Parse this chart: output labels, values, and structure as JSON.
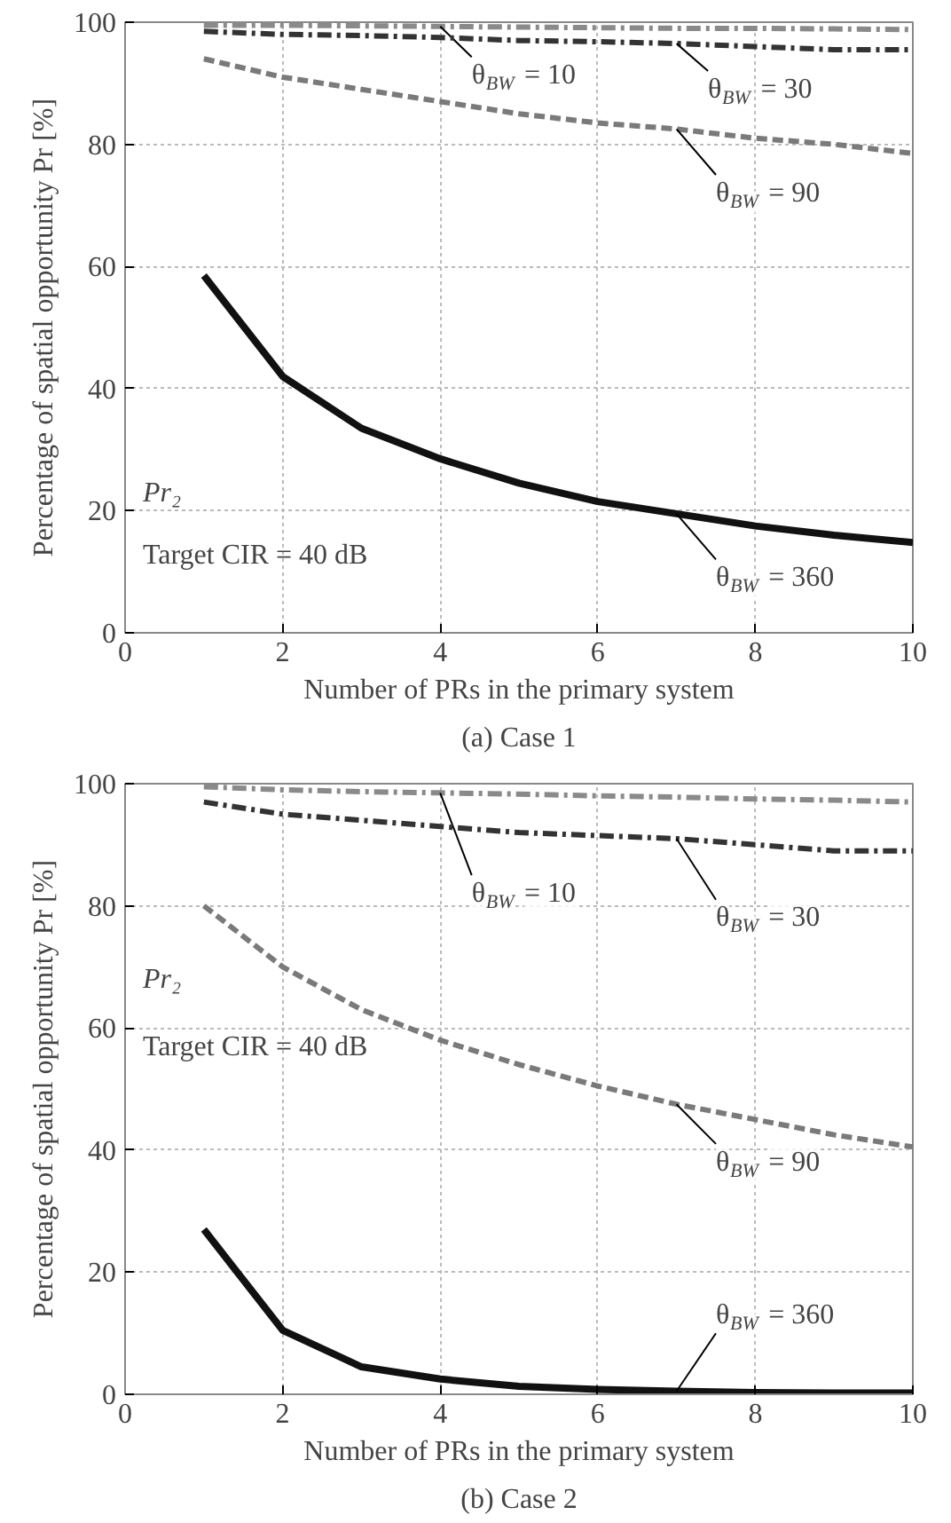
{
  "chart_data": [
    {
      "type": "line",
      "title": "(a) Case 1",
      "xlabel": "Number of PRs in the primary system",
      "ylabel": "Percentage of spatial opportunity Pr [%]",
      "x": [
        1,
        2,
        3,
        4,
        5,
        6,
        7,
        8,
        9,
        10
      ],
      "xlim": [
        0,
        10
      ],
      "ylim": [
        0,
        100
      ],
      "xticks": [
        0,
        2,
        4,
        6,
        8,
        10
      ],
      "yticks": [
        0,
        20,
        40,
        60,
        80,
        100
      ],
      "grid": true,
      "marker": "none",
      "series": [
        {
          "name": "θ$_{BW}$ = 10",
          "color": "#8a8a8a",
          "line_style": "dashdot",
          "values": [
            99.5,
            99.5,
            99.4,
            99.3,
            99.2,
            99.1,
            99.0,
            99.0,
            98.9,
            98.8
          ]
        },
        {
          "name": "θ$_{BW}$ = 30",
          "color": "#333333",
          "line_style": "dashdot",
          "values": [
            98.5,
            98.0,
            97.8,
            97.5,
            97.0,
            96.8,
            96.5,
            96.0,
            95.5,
            95.5
          ]
        },
        {
          "name": "θ$_{BW}$ = 90",
          "color": "#7a7a7a",
          "line_style": "dashed",
          "values": [
            94,
            91,
            89,
            87,
            85,
            83.5,
            82.5,
            81,
            80,
            78.5
          ]
        },
        {
          "name": "θ$_{BW}$ = 360",
          "color": "#111111",
          "line_style": "solid",
          "values": [
            58.5,
            42,
            33.5,
            28.5,
            24.5,
            21.5,
            19.5,
            17.5,
            16,
            14.8
          ]
        }
      ],
      "annotations": [
        "Pr₂",
        "Target CIR = 40 dB"
      ]
    },
    {
      "type": "line",
      "title": "(b) Case 2",
      "xlabel": "Number of PRs in the primary system",
      "ylabel": "Percentage of spatial opportunity Pr [%]",
      "x": [
        1,
        2,
        3,
        4,
        5,
        6,
        7,
        8,
        9,
        10
      ],
      "xlim": [
        0,
        10
      ],
      "ylim": [
        0,
        100
      ],
      "xticks": [
        0,
        2,
        4,
        6,
        8,
        10
      ],
      "yticks": [
        0,
        20,
        40,
        60,
        80,
        100
      ],
      "grid": true,
      "marker": "none",
      "series": [
        {
          "name": "θ$_{BW}$ = 10",
          "color": "#8a8a8a",
          "line_style": "dashdot",
          "values": [
            99.5,
            99.0,
            98.7,
            98.5,
            98.3,
            98.0,
            97.8,
            97.5,
            97.3,
            97.0
          ]
        },
        {
          "name": "θ$_{BW}$ = 30",
          "color": "#333333",
          "line_style": "dashdot",
          "values": [
            97,
            95,
            94,
            93,
            92,
            91.5,
            91,
            90,
            89,
            89
          ]
        },
        {
          "name": "θ$_{BW}$ = 90",
          "color": "#7a7a7a",
          "line_style": "dashed",
          "values": [
            80,
            70,
            63,
            58,
            54,
            50.5,
            47.5,
            45,
            42.5,
            40.5
          ]
        },
        {
          "name": "θ$_{BW}$ = 360",
          "color": "#111111",
          "line_style": "solid",
          "values": [
            27,
            10.5,
            4.5,
            2.5,
            1.3,
            0.8,
            0.5,
            0.3,
            0.2,
            0.2
          ]
        }
      ],
      "annotations": [
        "Pr₂",
        "Target CIR = 40 dB"
      ]
    }
  ]
}
